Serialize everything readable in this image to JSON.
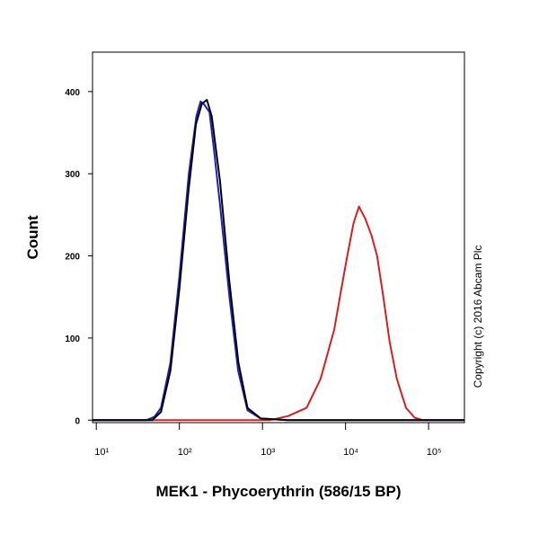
{
  "chart_data": {
    "type": "line",
    "x_label": "MEK1 - Phycoerythrin (586/15 BP)",
    "y_label": "Count",
    "annotation": "Copyright (c) 2016 Abcam Plc",
    "x_scale": "log",
    "xlim": [
      9,
      270000
    ],
    "xticks": [
      {
        "value": 10,
        "label": "10¹"
      },
      {
        "value": 100,
        "label": "10²"
      },
      {
        "value": 1000,
        "label": "10³"
      },
      {
        "value": 10000,
        "label": "10⁴"
      },
      {
        "value": 100000,
        "label": "10⁵"
      }
    ],
    "ylim": [
      -3,
      448
    ],
    "yticks": [
      0,
      100,
      200,
      300,
      400
    ],
    "series": [
      {
        "color": "#d62020",
        "x": [
          9,
          1230,
          2040,
          3400,
          5000,
          7300,
          8900,
          10500,
          12500,
          14500,
          17300,
          20500,
          24000,
          28500,
          34000,
          41500,
          53500,
          68000,
          85000,
          270000
        ],
        "values": [
          0,
          0,
          5,
          15,
          50,
          110,
          160,
          200,
          240,
          260,
          245,
          225,
          200,
          150,
          95,
          50,
          15,
          3,
          0,
          0
        ]
      },
      {
        "color": "#2020c0",
        "x": [
          9,
          40,
          50,
          60,
          78,
          100,
          130,
          160,
          180,
          200,
          230,
          260,
          310,
          400,
          510,
          660,
          950,
          2000,
          270000
        ],
        "values": [
          0,
          0,
          4,
          15,
          70,
          175,
          300,
          370,
          388,
          384,
          375,
          330,
          260,
          150,
          60,
          12,
          2,
          0,
          0
        ]
      },
      {
        "color": "#000000",
        "x": [
          9,
          47,
          60,
          78,
          100,
          129,
          158,
          186,
          214,
          245,
          309,
          398,
          513,
          661,
          955,
          2000,
          270000
        ],
        "values": [
          0,
          0,
          10,
          60,
          160,
          280,
          360,
          385,
          390,
          370,
          290,
          170,
          70,
          15,
          2,
          0,
          0
        ]
      }
    ]
  }
}
